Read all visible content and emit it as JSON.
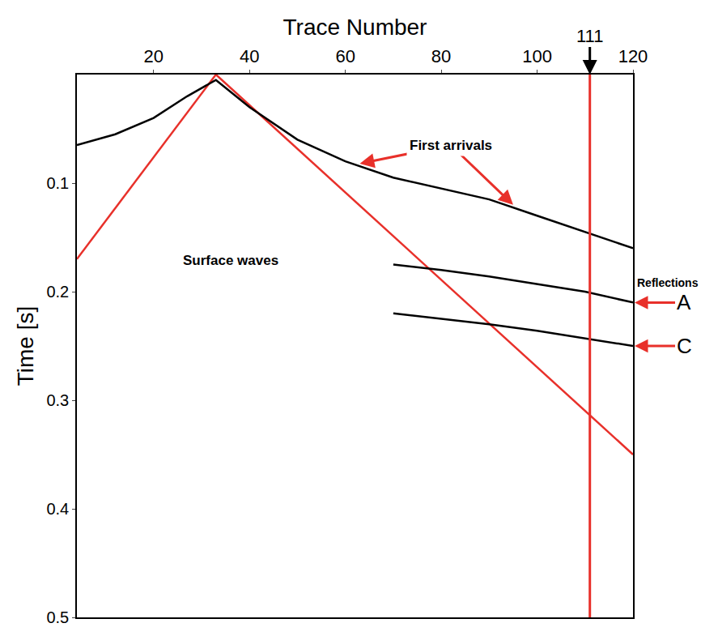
{
  "chart_data": {
    "type": "line",
    "xlabel": "Trace Number",
    "ylabel": "Time [s]",
    "xlim": [
      4,
      120
    ],
    "xticks": [
      20,
      40,
      60,
      80,
      100,
      120
    ],
    "ylim": [
      0.5,
      0
    ],
    "yticks": [
      0.1,
      0.2,
      0.3,
      0.4,
      0.5
    ],
    "grid": false,
    "series": [
      {
        "color": "#e8302a",
        "line_style": "solid",
        "x": [
          4,
          33
        ],
        "values": [
          0.17,
          0
        ]
      },
      {
        "color": "#e8302a",
        "line_style": "solid",
        "x": [
          33,
          120
        ],
        "values": [
          0,
          0.35
        ]
      },
      {
        "color": "#000000",
        "line_style": "solid",
        "x": [
          4,
          12,
          20,
          27,
          33,
          40,
          50,
          60,
          70,
          80,
          90,
          100,
          110,
          120
        ],
        "values": [
          0.065,
          0.055,
          0.04,
          0.02,
          0.005,
          0.03,
          0.06,
          0.08,
          0.095,
          0.105,
          0.115,
          0.13,
          0.145,
          0.16
        ]
      },
      {
        "color": "#000000",
        "line_style": "solid",
        "x": [
          70,
          80,
          90,
          100,
          110,
          120
        ],
        "values": [
          0.175,
          0.18,
          0.186,
          0.193,
          0.2,
          0.21
        ]
      },
      {
        "color": "#000000",
        "line_style": "solid",
        "x": [
          70,
          80,
          90,
          100,
          110,
          120
        ],
        "values": [
          0.22,
          0.225,
          0.23,
          0.236,
          0.243,
          0.25
        ]
      }
    ],
    "annotations": [
      {
        "text": "First arrivals",
        "x": 82,
        "y": 0.065,
        "color": "#e8302a",
        "arrows": [
          [
            63,
            0.082
          ],
          [
            95,
            0.12
          ]
        ]
      },
      {
        "text": "Surface waves",
        "x": 36,
        "y": 0.171
      }
    ],
    "side_labels": {
      "title": "Reflections",
      "color": "#e8302a",
      "labels": [
        {
          "text": "A",
          "y": 0.21
        },
        {
          "text": "C",
          "y": 0.25
        }
      ]
    },
    "top_marker": {
      "text": "111",
      "x": 111,
      "color": "#e8302a"
    }
  }
}
